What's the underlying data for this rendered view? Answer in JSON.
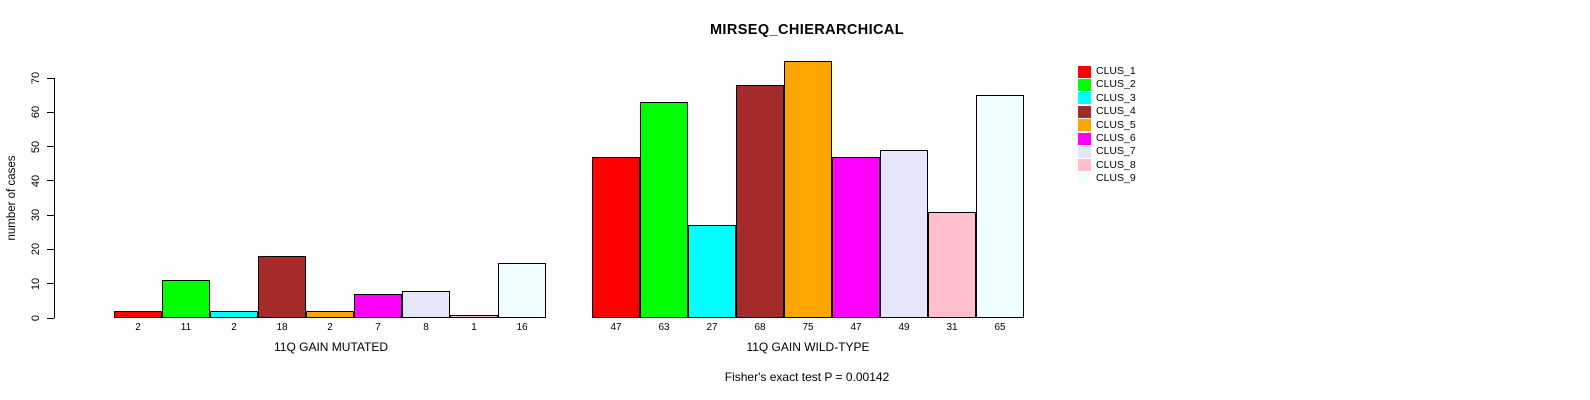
{
  "chart_data": {
    "type": "bar",
    "title": "MIRSEQ_CHIERARCHICAL",
    "ylabel": "number of cases",
    "xlabel": "",
    "ylim": [
      0,
      70
    ],
    "yticks": [
      0,
      10,
      20,
      30,
      40,
      50,
      60,
      70
    ],
    "grid": false,
    "legend_position": "right-outside",
    "categories": [
      "CLUS_1",
      "CLUS_2",
      "CLUS_3",
      "CLUS_4",
      "CLUS_5",
      "CLUS_6",
      "CLUS_7",
      "CLUS_8",
      "CLUS_9"
    ],
    "colors": [
      "#FF0000",
      "#00FF00",
      "#00FFFF",
      "#A52A2A",
      "#FFA500",
      "#FF00FF",
      "#E6E6FA",
      "#FFC0CB",
      "#F0FFFF"
    ],
    "groups": [
      {
        "label": "11Q GAIN MUTATED",
        "values": [
          2,
          11,
          2,
          18,
          2,
          7,
          8,
          1,
          16
        ]
      },
      {
        "label": "11Q GAIN WILD-TYPE",
        "values": [
          47,
          63,
          27,
          68,
          75,
          47,
          49,
          31,
          65
        ]
      }
    ],
    "bar_labels_shown": true,
    "annotation": "Fisher's exact test P = 0.00142",
    "bar_border_color": "#000000",
    "background_color": "#FFFFFF",
    "text_color": "#000000"
  },
  "legend": {
    "items": [
      {
        "label": "CLUS_1",
        "color": "#FF0000"
      },
      {
        "label": "CLUS_2",
        "color": "#00FF00"
      },
      {
        "label": "CLUS_3",
        "color": "#00FFFF"
      },
      {
        "label": "CLUS_4",
        "color": "#A52A2A"
      },
      {
        "label": "CLUS_5",
        "color": "#FFA500"
      },
      {
        "label": "CLUS_6",
        "color": "#FF00FF"
      },
      {
        "label": "CLUS_7",
        "color": "#E6E6FA"
      },
      {
        "label": "CLUS_8",
        "color": "#FFC0CB"
      },
      {
        "label": "CLUS_9",
        "color": "#F0FFFF"
      }
    ]
  }
}
